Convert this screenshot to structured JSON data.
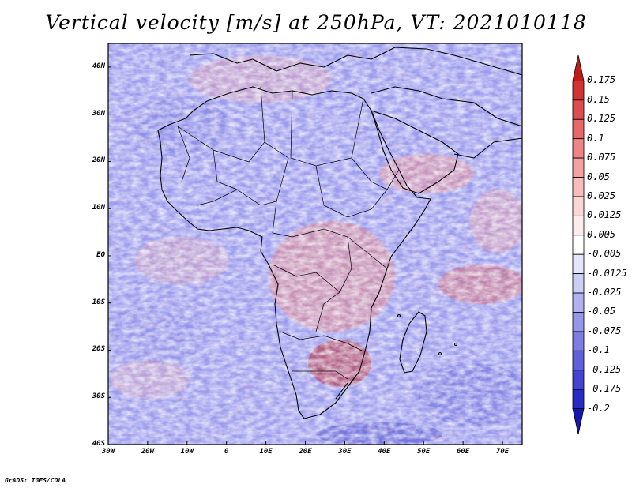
{
  "figure": {
    "title": "Vertical velocity [m/s] at 250hPa, VT: 2021010118",
    "credit": "GrADS: IGES/COLA"
  },
  "map": {
    "region": "Africa",
    "variable": "Vertical velocity",
    "units": "m/s",
    "level": "250hPa",
    "valid_time": "2021010118",
    "lon_range": [
      -30,
      75
    ],
    "lat_range": [
      -40,
      45
    ],
    "lat_labels": [
      "40N",
      "30N",
      "20N",
      "10N",
      "EQ",
      "10S",
      "20S",
      "30S",
      "40S"
    ],
    "lat_values": [
      40,
      30,
      20,
      10,
      0,
      -10,
      -20,
      -30,
      -40
    ],
    "lon_labels": [
      "30W",
      "20W",
      "10W",
      "0",
      "10E",
      "20E",
      "30E",
      "40E",
      "50E",
      "60E",
      "70E"
    ],
    "lon_values": [
      -30,
      -20,
      -10,
      0,
      10,
      20,
      30,
      40,
      50,
      60,
      70
    ]
  },
  "colorbar": {
    "labels": [
      "0.175",
      "0.15",
      "0.125",
      "0.1",
      "0.075",
      "0.05",
      "0.025",
      "0.0125",
      "0.005",
      "-0.005",
      "-0.0125",
      "-0.025",
      "-0.05",
      "-0.075",
      "-0.1",
      "-0.125",
      "-0.175",
      "-0.2"
    ],
    "colors": [
      "#c11c1c",
      "#d23434",
      "#de4e4e",
      "#e66868",
      "#ee8585",
      "#f3a1a1",
      "#f8bcbc",
      "#fbd6d6",
      "#fdecec",
      "#ffffff",
      "#e6e6fa",
      "#cdcdf6",
      "#b2b2f0",
      "#9797ea",
      "#7c7ce2",
      "#6060da",
      "#4444d0",
      "#2a2ac4",
      "#1515b0"
    ]
  }
}
